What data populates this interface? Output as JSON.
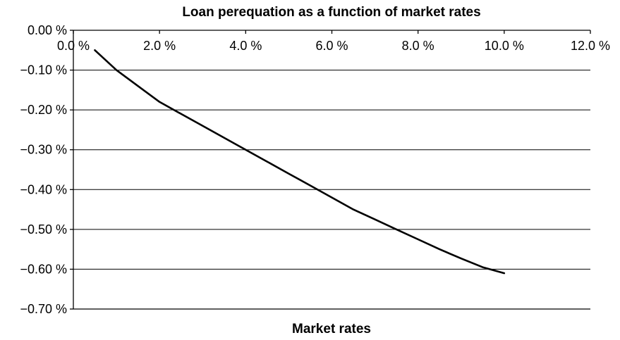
{
  "chart_data": {
    "type": "line",
    "title": "Loan perequation as a function of market rates",
    "xlabel": "Market rates",
    "ylabel": "",
    "xlim": [
      0,
      12
    ],
    "ylim": [
      -0.7,
      0.0
    ],
    "x_ticks": [
      0,
      2,
      4,
      6,
      8,
      10,
      12
    ],
    "x_tick_labels": [
      "0.0 %",
      "2.0 %",
      "4.0 %",
      "6.0 %",
      "8.0 %",
      "10.0 %",
      "12.0 %"
    ],
    "y_ticks": [
      0.0,
      -0.1,
      -0.2,
      -0.3,
      -0.4,
      -0.5,
      -0.6,
      -0.7
    ],
    "y_tick_labels": [
      "0.00 %",
      "−0.10 %",
      "−0.20 %",
      "−0.30 %",
      "−0.40 %",
      "−0.50 %",
      "−0.60 %",
      "−0.70 %"
    ],
    "grid": true,
    "x_axis_position": "top",
    "series": [
      {
        "color": "#000000",
        "x": [
          0.5,
          1.0,
          1.5,
          2.0,
          2.5,
          3.0,
          3.5,
          4.0,
          4.5,
          5.0,
          5.5,
          6.0,
          6.5,
          7.0,
          7.5,
          8.0,
          8.5,
          9.0,
          9.5,
          10.0
        ],
        "values": [
          -0.05,
          -0.1,
          -0.14,
          -0.18,
          -0.21,
          -0.24,
          -0.27,
          -0.3,
          -0.33,
          -0.36,
          -0.39,
          -0.42,
          -0.45,
          -0.475,
          -0.5,
          -0.525,
          -0.55,
          -0.573,
          -0.595,
          -0.61
        ]
      }
    ]
  }
}
